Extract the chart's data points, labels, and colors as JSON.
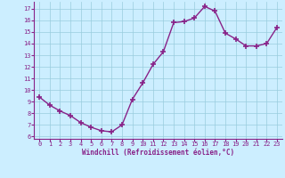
{
  "x": [
    0,
    1,
    2,
    3,
    4,
    5,
    6,
    7,
    8,
    9,
    10,
    11,
    12,
    13,
    14,
    15,
    16,
    17,
    18,
    19,
    20,
    21,
    22,
    23
  ],
  "y": [
    9.4,
    8.7,
    8.2,
    7.8,
    7.2,
    6.8,
    6.5,
    6.4,
    7.0,
    9.2,
    10.6,
    12.2,
    13.3,
    15.8,
    15.9,
    16.2,
    17.2,
    16.8,
    14.9,
    14.4,
    13.8,
    13.8,
    14.0,
    15.4
  ],
  "line_color": "#882288",
  "marker": "+",
  "marker_size": 4,
  "bg_color": "#cceeff",
  "grid_color": "#99ccdd",
  "xlabel": "Windchill (Refroidissement éolien,°C)",
  "xlabel_color": "#882288",
  "tick_color": "#882288",
  "ylim": [
    5.8,
    17.6
  ],
  "yticks": [
    6,
    7,
    8,
    9,
    10,
    11,
    12,
    13,
    14,
    15,
    16,
    17
  ],
  "xticks": [
    0,
    1,
    2,
    3,
    4,
    5,
    6,
    7,
    8,
    9,
    10,
    11,
    12,
    13,
    14,
    15,
    16,
    17,
    18,
    19,
    20,
    21,
    22,
    23
  ],
  "line_width": 1.0
}
